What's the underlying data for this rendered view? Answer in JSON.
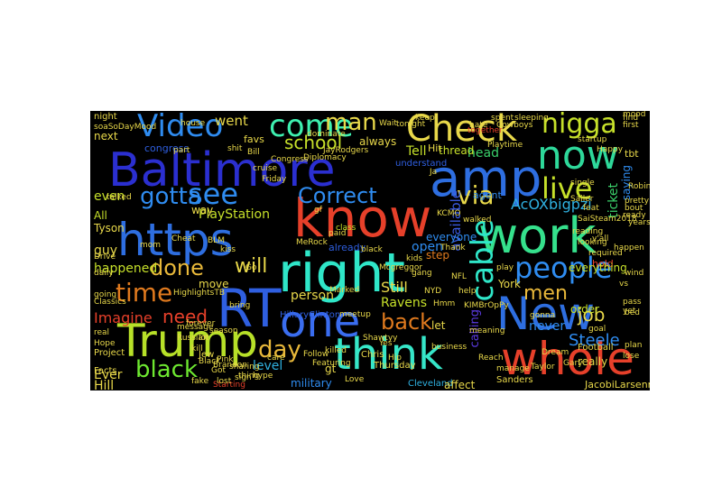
{
  "image": {
    "type": "word-cloud",
    "background": "#000000",
    "page_background": "#ffffff"
  },
  "words": [
    {
      "text": "Baltimore",
      "color": "#2b2fd0"
    },
    {
      "text": "https",
      "color": "#2e6ee0"
    },
    {
      "text": "right",
      "color": "#2fe6c8"
    },
    {
      "text": "know",
      "color": "#e6402a"
    },
    {
      "text": "amp",
      "color": "#2e6ee0"
    },
    {
      "text": "Check",
      "color": "#e8d84a"
    },
    {
      "text": "work",
      "color": "#35e08c"
    },
    {
      "text": "New",
      "color": "#2e6ee0"
    },
    {
      "text": "whole",
      "color": "#e6402a"
    },
    {
      "text": "think",
      "color": "#36e6c8"
    },
    {
      "text": "Trump",
      "color": "#b7e028"
    },
    {
      "text": "RT",
      "color": "#2f5fe0"
    },
    {
      "text": "one",
      "color": "#3a6df0"
    },
    {
      "text": "time",
      "color": "#e07a1e"
    },
    {
      "text": "now",
      "color": "#2ed89a"
    },
    {
      "text": "Video",
      "color": "#2f8cf0"
    },
    {
      "text": "come",
      "color": "#3ef0b0"
    },
    {
      "text": "see",
      "color": "#2f8cf0"
    },
    {
      "text": "people",
      "color": "#2f8cf0"
    },
    {
      "text": "live",
      "color": "#c6e02a"
    },
    {
      "text": "nigga",
      "color": "#c6e02a"
    },
    {
      "text": "man",
      "color": "#e8d84a"
    },
    {
      "text": "Correct",
      "color": "#2f8cf0"
    },
    {
      "text": "gotta",
      "color": "#2f8cf0"
    },
    {
      "text": "school",
      "color": "#c6e02a"
    },
    {
      "text": "done",
      "color": "#e8b83a"
    },
    {
      "text": "day",
      "color": "#e8b83a"
    },
    {
      "text": "black",
      "color": "#6ee830"
    },
    {
      "text": "need",
      "color": "#e6402a"
    },
    {
      "text": "will",
      "color": "#e8d84a"
    },
    {
      "text": "via",
      "color": "#e8d84a"
    },
    {
      "text": "men",
      "color": "#e8b83a"
    },
    {
      "text": "job",
      "color": "#e8d84a"
    },
    {
      "text": "back",
      "color": "#e07a1e"
    },
    {
      "text": "Steele",
      "color": "#2f8cf0"
    },
    {
      "text": "available",
      "color": "#3a5ae0"
    },
    {
      "text": "cable",
      "color": "#2fe6c8"
    },
    {
      "text": "PlayStation",
      "color": "#c6e02a"
    },
    {
      "text": "went",
      "color": "#e8d84a"
    },
    {
      "text": "level",
      "color": "#2fb0e0"
    },
    {
      "text": "Ravens",
      "color": "#c6e02a"
    },
    {
      "text": "Imagine",
      "color": "#e6402a"
    },
    {
      "text": "happened",
      "color": "#c6e02a"
    },
    {
      "text": "guy",
      "color": "#e8d84a"
    },
    {
      "text": "even",
      "color": "#c6e02a"
    },
    {
      "text": "ticket",
      "color": "#3ad06a"
    },
    {
      "text": "person",
      "color": "#e8d84a"
    },
    {
      "text": "Still",
      "color": "#e8d84a"
    },
    {
      "text": "AcOXbigpzi",
      "color": "#2fb0e0"
    },
    {
      "text": "Tell",
      "color": "#c6e02a"
    },
    {
      "text": "head",
      "color": "#3ad06a"
    },
    {
      "text": "never",
      "color": "#2f8cf0"
    },
    {
      "text": "open",
      "color": "#2f8cf0"
    },
    {
      "text": "always",
      "color": "#e8d84a"
    },
    {
      "text": "calling",
      "color": "#5a3ae0"
    },
    {
      "text": "way",
      "color": "#e8d84a"
    },
    {
      "text": "Ever",
      "color": "#e8d84a"
    },
    {
      "text": "Hill",
      "color": "#e8d84a"
    },
    {
      "text": "thread",
      "color": "#c6e02a"
    },
    {
      "text": "saying",
      "color": "#2f8cf0"
    },
    {
      "text": "order",
      "color": "#c6e02a"
    },
    {
      "text": "really",
      "color": "#e8d84a"
    },
    {
      "text": "York",
      "color": "#e8d84a"
    },
    {
      "text": "step",
      "color": "#e07a1e"
    },
    {
      "text": "everyone",
      "color": "#2f8cf0"
    },
    {
      "text": "move",
      "color": "#e8d84a"
    },
    {
      "text": "military",
      "color": "#2f8cf0"
    },
    {
      "text": "Cleveland",
      "color": "#2fb0e0"
    },
    {
      "text": "affect",
      "color": "#e8d84a"
    },
    {
      "text": "JacobiLarsenn",
      "color": "#e8d84a"
    },
    {
      "text": "HillaryClinton",
      "color": "#2f5fe0"
    },
    {
      "text": "already",
      "color": "#2f5fe0"
    },
    {
      "text": "gt",
      "color": "#e8d84a"
    },
    {
      "text": "agent",
      "color": "#2f8cf0"
    },
    {
      "text": "hold",
      "color": "#e6402a"
    },
    {
      "text": "everything",
      "color": "#c6e02a"
    },
    {
      "text": "tbt",
      "color": "#e8d84a"
    },
    {
      "text": "let",
      "color": "#e8d84a"
    },
    {
      "text": "Facts",
      "color": "#e8d84a"
    },
    {
      "text": "Tyson",
      "color": "#e8d84a"
    },
    {
      "text": "All",
      "color": "#c6e02a"
    },
    {
      "text": "next",
      "color": "#e8d84a"
    },
    {
      "text": "favs",
      "color": "#e8d84a"
    },
    {
      "text": "Hit",
      "color": "#e8d84a"
    },
    {
      "text": "Thursday",
      "color": "#e8d84a"
    },
    {
      "text": "Sanders",
      "color": "#e8d84a"
    },
    {
      "text": "Football",
      "color": "#e8d84a"
    },
    {
      "text": "Project",
      "color": "#e8d84a"
    },
    {
      "text": "Starting",
      "color": "#e6402a"
    },
    {
      "text": "night",
      "color": "#e8d84a"
    },
    {
      "text": "Chris",
      "color": "#e8d84a"
    },
    {
      "text": "business",
      "color": "#e8d84a"
    },
    {
      "text": "manage",
      "color": "#e8d84a"
    },
    {
      "text": "understand",
      "color": "#2f5fe0"
    },
    {
      "text": "class",
      "color": "#c6e02a"
    },
    {
      "text": "Jew",
      "color": "#e8d84a"
    },
    {
      "text": "congress",
      "color": "#2f5fe0"
    },
    {
      "text": "daily",
      "color": "#e8d84a"
    },
    {
      "text": "Drive",
      "color": "#e8d84a"
    },
    {
      "text": "going",
      "color": "#e8d84a"
    },
    {
      "text": "bring",
      "color": "#e8d84a"
    },
    {
      "text": "Follow",
      "color": "#e8d84a"
    },
    {
      "text": "kill",
      "color": "#e8d84a"
    },
    {
      "text": "y'all",
      "color": "#e8d84a"
    },
    {
      "text": "happen",
      "color": "#e8d84a"
    },
    {
      "text": "required",
      "color": "#e8d84a"
    },
    {
      "text": "goal",
      "color": "#e8d84a"
    },
    {
      "text": "lose",
      "color": "#e8d84a"
    },
    {
      "text": "looking",
      "color": "#e8d84a"
    },
    {
      "text": "first",
      "color": "#e8d84a"
    },
    {
      "text": "find",
      "color": "#e8d84a"
    },
    {
      "text": "mood",
      "color": "#e8d84a"
    },
    {
      "text": "Classics",
      "color": "#e8d84a"
    },
    {
      "text": "real",
      "color": "#e8d84a"
    },
    {
      "text": "forever",
      "color": "#e8d84a"
    },
    {
      "text": "Cheat",
      "color": "#e8d84a"
    },
    {
      "text": "lot",
      "color": "#e8d84a"
    },
    {
      "text": "season",
      "color": "#e8d84a"
    },
    {
      "text": "Russian",
      "color": "#e8d84a"
    },
    {
      "text": "house",
      "color": "#e8d84a"
    },
    {
      "text": "shit",
      "color": "#e8d84a"
    },
    {
      "text": "single",
      "color": "#e8d84a"
    },
    {
      "text": "Sailer",
      "color": "#e8d84a"
    },
    {
      "text": "killed",
      "color": "#e8d84a"
    },
    {
      "text": "lost",
      "color": "#e8d84a"
    },
    {
      "text": "Go",
      "color": "#e8d84a"
    },
    {
      "text": "keep",
      "color": "#e8d84a"
    },
    {
      "text": "part",
      "color": "#e8d84a"
    },
    {
      "text": "together",
      "color": "#e6402a"
    },
    {
      "text": "startup",
      "color": "#e8d84a"
    },
    {
      "text": "sleeping",
      "color": "#e8d84a"
    },
    {
      "text": "meetup",
      "color": "#e8d84a"
    },
    {
      "text": "gf",
      "color": "#e8d84a"
    },
    {
      "text": "dominate",
      "color": "#e8d84a"
    },
    {
      "text": "message",
      "color": "#e8d84a"
    },
    {
      "text": "fake",
      "color": "#e8d84a"
    },
    {
      "text": "Dream",
      "color": "#e8d84a"
    },
    {
      "text": "yet",
      "color": "#e8d84a"
    },
    {
      "text": "Wait",
      "color": "#e8d84a"
    },
    {
      "text": "yearsAtkill",
      "color": "#e8d84a"
    },
    {
      "text": "vs",
      "color": "#e8d84a"
    },
    {
      "text": "wind",
      "color": "#e8d84a"
    },
    {
      "text": "pass",
      "color": "#e8d84a"
    },
    {
      "text": "plan",
      "color": "#e8d84a"
    },
    {
      "text": "ready",
      "color": "#e8d84a"
    },
    {
      "text": "bout",
      "color": "#e8d84a"
    },
    {
      "text": "reading",
      "color": "#e8d84a"
    },
    {
      "text": "bed",
      "color": "#e8d84a"
    },
    {
      "text": "pretty",
      "color": "#e8d84a"
    },
    {
      "text": "SaiSteam2018",
      "color": "#e8d84a"
    },
    {
      "text": "spent",
      "color": "#e8d84a"
    },
    {
      "text": "Cowboys",
      "color": "#e8d84a"
    },
    {
      "text": "Taylor",
      "color": "#e8d84a"
    },
    {
      "text": "feat",
      "color": "#e8d84a"
    },
    {
      "text": "Robinson",
      "color": "#e8d84a"
    },
    {
      "text": "soaSoDayMood",
      "color": "#e8d84a"
    },
    {
      "text": "Featuring",
      "color": "#e8d84a"
    },
    {
      "text": "Love",
      "color": "#e8d84a"
    },
    {
      "text": "care",
      "color": "#e8d84a"
    },
    {
      "text": "Pink",
      "color": "#e8d84a"
    },
    {
      "text": "sharing",
      "color": "#e8d84a"
    },
    {
      "text": "thing",
      "color": "#e8d84a"
    },
    {
      "text": "hype",
      "color": "#e8d84a"
    },
    {
      "text": "paid",
      "color": "#e8d84a"
    },
    {
      "text": "sign",
      "color": "#e8d84a"
    },
    {
      "text": "Black",
      "color": "#e8d84a"
    },
    {
      "text": "Got",
      "color": "#e8d84a"
    },
    {
      "text": "Hope",
      "color": "#e8d84a"
    },
    {
      "text": "Brandon",
      "color": "#e8d84a"
    },
    {
      "text": "Diplomacy",
      "color": "#e8d84a"
    },
    {
      "text": "Bill",
      "color": "#e8d84a"
    },
    {
      "text": "JayRodgers",
      "color": "#e8d84a"
    },
    {
      "text": "hate",
      "color": "#e8d84a"
    },
    {
      "text": "Playtime",
      "color": "#e8d84a"
    },
    {
      "text": "KCMO",
      "color": "#e8d84a"
    },
    {
      "text": "Thank",
      "color": "#e8d84a"
    },
    {
      "text": "NFL",
      "color": "#e8d84a"
    },
    {
      "text": "help",
      "color": "#e8d84a"
    },
    {
      "text": "KIMBrOpPy",
      "color": "#e8d84a"
    },
    {
      "text": "meaning",
      "color": "#e8d84a"
    },
    {
      "text": "Reach",
      "color": "#e8d84a"
    },
    {
      "text": "Yes",
      "color": "#e8d84a"
    },
    {
      "text": "Hip",
      "color": "#e8d84a"
    },
    {
      "text": "black",
      "color": "#e8d84a"
    },
    {
      "text": "Mcgreggor",
      "color": "#e8d84a"
    },
    {
      "text": "kids",
      "color": "#e8d84a"
    },
    {
      "text": "gang",
      "color": "#e8d84a"
    },
    {
      "text": "NYD",
      "color": "#e8d84a"
    },
    {
      "text": "Hmm",
      "color": "#e8d84a"
    },
    {
      "text": "BLM",
      "color": "#e8d84a"
    },
    {
      "text": "kiss",
      "color": "#e8d84a"
    },
    {
      "text": "cruise",
      "color": "#e8d84a"
    },
    {
      "text": "Friday",
      "color": "#e8d84a"
    },
    {
      "text": "Congress",
      "color": "#e8d84a"
    },
    {
      "text": "MeRock",
      "color": "#e8d84a"
    },
    {
      "text": "Marked",
      "color": "#e8d84a"
    },
    {
      "text": "Shawtyy",
      "color": "#e8d84a"
    },
    {
      "text": "tonight",
      "color": "#e8d84a"
    },
    {
      "text": "Ja",
      "color": "#e8d84a"
    },
    {
      "text": "walked",
      "color": "#e8d84a"
    },
    {
      "text": "play",
      "color": "#e8d84a"
    },
    {
      "text": "gonna",
      "color": "#e8d84a"
    },
    {
      "text": "Gary",
      "color": "#e8d84a"
    },
    {
      "text": "Happy",
      "color": "#e8d84a"
    },
    {
      "text": "talked",
      "color": "#e8d84a"
    },
    {
      "text": "mom",
      "color": "#e8d84a"
    },
    {
      "text": "HighlightsTB",
      "color": "#e8d84a"
    }
  ]
}
